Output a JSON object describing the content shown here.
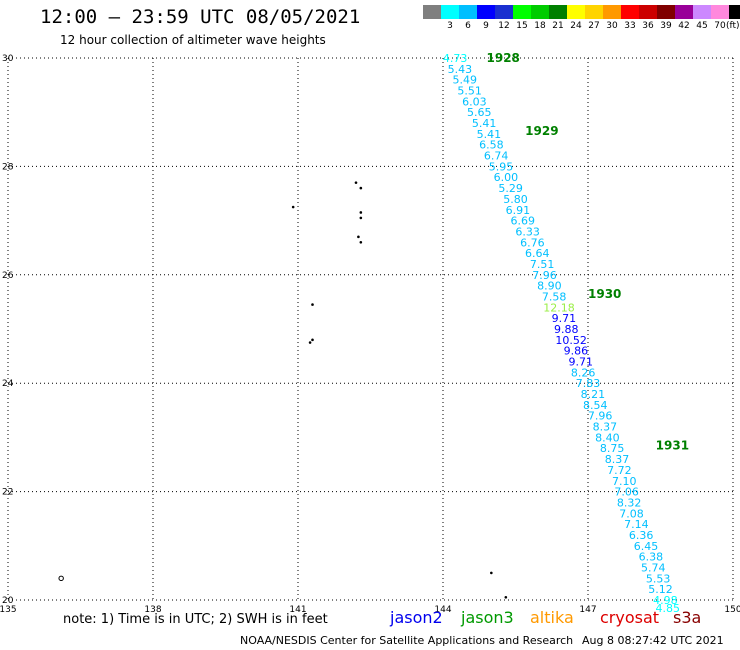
{
  "header": {
    "title": "12:00 – 23:59 UTC 08/05/2021",
    "subtitle": "12 hour collection of altimeter wave heights"
  },
  "legend": {
    "unit": "(ft)",
    "items": [
      {
        "label": "",
        "color": "#7f7f7f"
      },
      {
        "label": "3",
        "color": "#00ffff"
      },
      {
        "label": "6",
        "color": "#00bfff"
      },
      {
        "label": "9",
        "color": "#0000ff"
      },
      {
        "label": "12",
        "color": "#1a2fd0"
      },
      {
        "label": "15",
        "color": "#00ff00"
      },
      {
        "label": "18",
        "color": "#00cc00"
      },
      {
        "label": "21",
        "color": "#008000"
      },
      {
        "label": "24",
        "color": "#ffff00"
      },
      {
        "label": "27",
        "color": "#ffd400"
      },
      {
        "label": "30",
        "color": "#ff9900"
      },
      {
        "label": "33",
        "color": "#ff0000"
      },
      {
        "label": "36",
        "color": "#cc0000"
      },
      {
        "label": "39",
        "color": "#800000"
      },
      {
        "label": "42",
        "color": "#990099"
      },
      {
        "label": "45",
        "color": "#cc88ff"
      },
      {
        "label": "70",
        "color": "#ff88dd"
      },
      {
        "label": "",
        "color": "#000000"
      }
    ]
  },
  "chart_data": {
    "type": "scatter",
    "title": "12:00 – 23:59 UTC 08/05/2021",
    "xlim": [
      135,
      150
    ],
    "ylim": [
      20,
      30
    ],
    "grid": true,
    "xticks": [
      135,
      138,
      141,
      144,
      147,
      150
    ],
    "yticks": [
      20,
      22,
      24,
      26,
      28,
      30
    ],
    "xtick_labels": [
      "135",
      "138",
      "141",
      "144",
      "147",
      "150"
    ],
    "ytick_labels": [
      "20",
      "22",
      "24",
      "26",
      "28",
      "30"
    ],
    "track": [
      {
        "lat": 30.0,
        "lon": 144.25,
        "swh": "4.73",
        "color": "#00ffff"
      },
      {
        "lat": 29.8,
        "lon": 144.35,
        "swh": "5.43",
        "color": "#00bfff"
      },
      {
        "lat": 29.6,
        "lon": 144.45,
        "swh": "5.49",
        "color": "#00bfff"
      },
      {
        "lat": 29.4,
        "lon": 144.55,
        "swh": "5.51",
        "color": "#00bfff"
      },
      {
        "lat": 29.2,
        "lon": 144.65,
        "swh": "6.03",
        "color": "#00bfff"
      },
      {
        "lat": 29.0,
        "lon": 144.75,
        "swh": "5.65",
        "color": "#00bfff"
      },
      {
        "lat": 28.8,
        "lon": 144.85,
        "swh": "5.41",
        "color": "#00bfff"
      },
      {
        "lat": 28.6,
        "lon": 144.95,
        "swh": "5.41",
        "color": "#00bfff"
      },
      {
        "lat": 28.4,
        "lon": 145.0,
        "swh": "6.58",
        "color": "#00bfff"
      },
      {
        "lat": 28.2,
        "lon": 145.1,
        "swh": "6.74",
        "color": "#00bfff"
      },
      {
        "lat": 28.0,
        "lon": 145.2,
        "swh": "5.95",
        "color": "#00bfff"
      },
      {
        "lat": 27.8,
        "lon": 145.3,
        "swh": "6.00",
        "color": "#00bfff"
      },
      {
        "lat": 27.6,
        "lon": 145.4,
        "swh": "5.29",
        "color": "#00bfff"
      },
      {
        "lat": 27.4,
        "lon": 145.5,
        "swh": "5.80",
        "color": "#00bfff"
      },
      {
        "lat": 27.2,
        "lon": 145.55,
        "swh": "6.91",
        "color": "#00bfff"
      },
      {
        "lat": 27.0,
        "lon": 145.65,
        "swh": "6.69",
        "color": "#00bfff"
      },
      {
        "lat": 26.8,
        "lon": 145.75,
        "swh": "6.33",
        "color": "#00bfff"
      },
      {
        "lat": 26.6,
        "lon": 145.85,
        "swh": "6.76",
        "color": "#00bfff"
      },
      {
        "lat": 26.4,
        "lon": 145.95,
        "swh": "6.64",
        "color": "#00bfff"
      },
      {
        "lat": 26.2,
        "lon": 146.05,
        "swh": "7.51",
        "color": "#00bfff"
      },
      {
        "lat": 26.0,
        "lon": 146.1,
        "swh": "7.96",
        "color": "#00bfff"
      },
      {
        "lat": 25.8,
        "lon": 146.2,
        "swh": "8.90",
        "color": "#00bfff"
      },
      {
        "lat": 25.6,
        "lon": 146.3,
        "swh": "7.58",
        "color": "#00bfff"
      },
      {
        "lat": 25.4,
        "lon": 146.4,
        "swh": "12.18",
        "color": "#99ee44"
      },
      {
        "lat": 25.2,
        "lon": 146.5,
        "swh": "9.71",
        "color": "#0000ff"
      },
      {
        "lat": 25.0,
        "lon": 146.55,
        "swh": "9.88",
        "color": "#0000ff"
      },
      {
        "lat": 24.8,
        "lon": 146.65,
        "swh": "10.52",
        "color": "#0000ff"
      },
      {
        "lat": 24.6,
        "lon": 146.75,
        "swh": "9.86",
        "color": "#0000ff"
      },
      {
        "lat": 24.4,
        "lon": 146.85,
        "swh": "9.71",
        "color": "#0000ff"
      },
      {
        "lat": 24.2,
        "lon": 146.9,
        "swh": "8.26",
        "color": "#00bfff"
      },
      {
        "lat": 24.0,
        "lon": 147.0,
        "swh": "7.83",
        "color": "#00bfff"
      },
      {
        "lat": 23.8,
        "lon": 147.1,
        "swh": "8.21",
        "color": "#00bfff"
      },
      {
        "lat": 23.6,
        "lon": 147.15,
        "swh": "8.54",
        "color": "#00bfff"
      },
      {
        "lat": 23.4,
        "lon": 147.25,
        "swh": "7.96",
        "color": "#00bfff"
      },
      {
        "lat": 23.2,
        "lon": 147.35,
        "swh": "8.37",
        "color": "#00bfff"
      },
      {
        "lat": 23.0,
        "lon": 147.4,
        "swh": "8.40",
        "color": "#00bfff"
      },
      {
        "lat": 22.8,
        "lon": 147.5,
        "swh": "8.75",
        "color": "#00bfff"
      },
      {
        "lat": 22.6,
        "lon": 147.6,
        "swh": "8.37",
        "color": "#00bfff"
      },
      {
        "lat": 22.4,
        "lon": 147.65,
        "swh": "7.72",
        "color": "#00bfff"
      },
      {
        "lat": 22.2,
        "lon": 147.75,
        "swh": "7.10",
        "color": "#00bfff"
      },
      {
        "lat": 22.0,
        "lon": 147.8,
        "swh": "7.06",
        "color": "#00bfff"
      },
      {
        "lat": 21.8,
        "lon": 147.85,
        "swh": "8.32",
        "color": "#00bfff"
      },
      {
        "lat": 21.6,
        "lon": 147.9,
        "swh": "7.08",
        "color": "#00bfff"
      },
      {
        "lat": 21.4,
        "lon": 148.0,
        "swh": "7.14",
        "color": "#00bfff"
      },
      {
        "lat": 21.2,
        "lon": 148.1,
        "swh": "6.36",
        "color": "#00bfff"
      },
      {
        "lat": 21.0,
        "lon": 148.2,
        "swh": "6.45",
        "color": "#00bfff"
      },
      {
        "lat": 20.8,
        "lon": 148.3,
        "swh": "6.38",
        "color": "#00bfff"
      },
      {
        "lat": 20.6,
        "lon": 148.35,
        "swh": "5.74",
        "color": "#00bfff"
      },
      {
        "lat": 20.4,
        "lon": 148.45,
        "swh": "5.53",
        "color": "#00bfff"
      },
      {
        "lat": 20.2,
        "lon": 148.5,
        "swh": "5.12",
        "color": "#00bfff"
      },
      {
        "lat": 20.0,
        "lon": 148.6,
        "swh": "4.98",
        "color": "#00ffff"
      },
      {
        "lat": 19.85,
        "lon": 148.65,
        "swh": "4.85",
        "color": "#00ffff"
      }
    ],
    "time_labels": [
      {
        "text": "1928",
        "lat": 30.0,
        "lon": 144.9
      },
      {
        "text": "1929",
        "lat": 28.65,
        "lon": 145.7
      },
      {
        "text": "1930",
        "lat": 25.65,
        "lon": 147.0
      },
      {
        "text": "1931",
        "lat": 22.85,
        "lon": 148.4
      }
    ],
    "islands": [
      {
        "lon": 142.2,
        "lat": 27.7
      },
      {
        "lon": 142.3,
        "lat": 27.6
      },
      {
        "lon": 140.9,
        "lat": 27.25
      },
      {
        "lon": 142.3,
        "lat": 27.15
      },
      {
        "lon": 142.3,
        "lat": 27.05
      },
      {
        "lon": 142.25,
        "lat": 26.7
      },
      {
        "lon": 142.3,
        "lat": 26.6
      },
      {
        "lon": 141.3,
        "lat": 25.45
      },
      {
        "lon": 141.3,
        "lat": 24.8
      },
      {
        "lon": 141.25,
        "lat": 24.75
      },
      {
        "lon": 145.0,
        "lat": 20.5
      },
      {
        "lon": 145.3,
        "lat": 20.05
      }
    ],
    "small_circles": [
      {
        "lon": 136.1,
        "lat": 20.4
      }
    ],
    "label_color": "#008000"
  },
  "footer": {
    "note": "note:  1) Time is in UTC;  2) SWH is in feet",
    "satellites": [
      {
        "name": "jason2",
        "color": "#0000ee"
      },
      {
        "name": "jason3",
        "color": "#009900"
      },
      {
        "name": "altika",
        "color": "#ff9900"
      },
      {
        "name": "cryosat",
        "color": "#dd0000"
      },
      {
        "name": "s3a",
        "color": "#880000"
      }
    ],
    "credit": "NOAA/NESDIS Center for Satellite Applications and Research",
    "date": "Aug  8 08:27:42 UTC 2021"
  }
}
